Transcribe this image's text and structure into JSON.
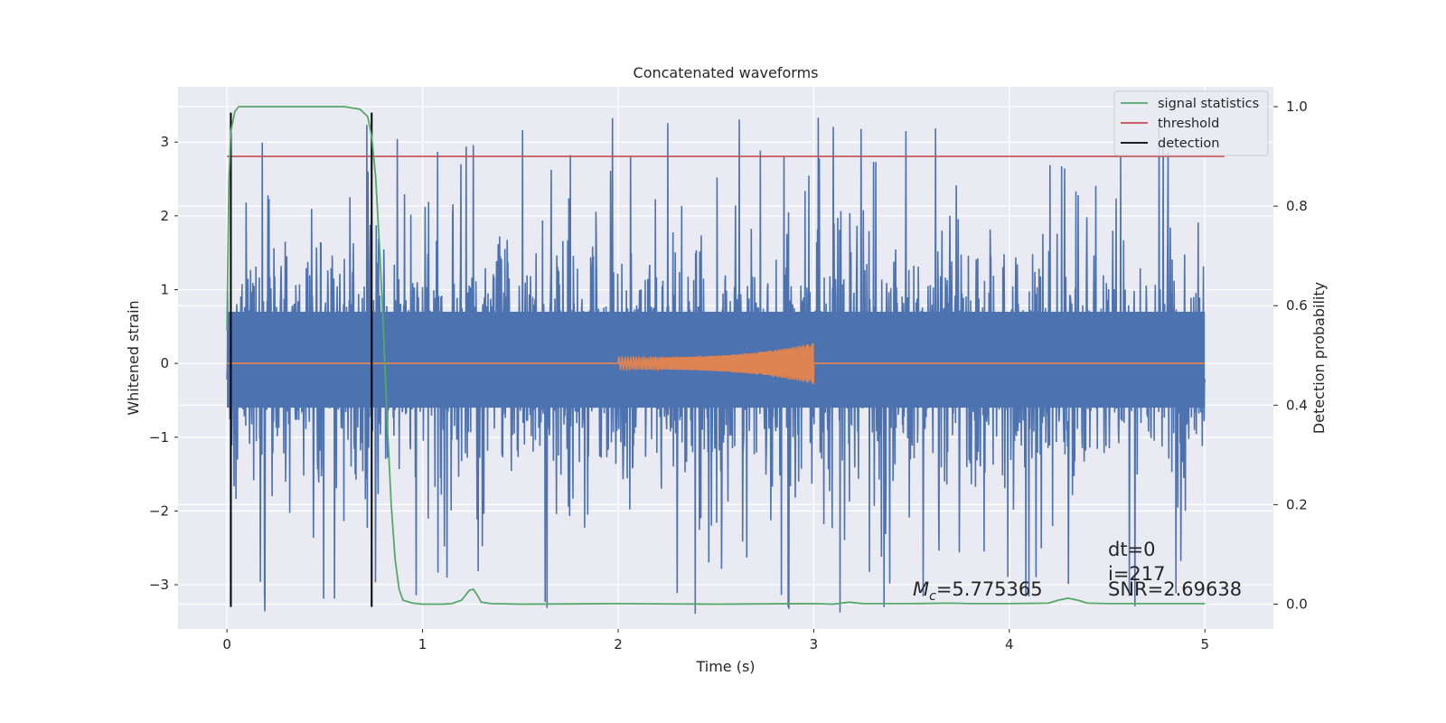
{
  "chart_data": {
    "type": "line",
    "title": "Concatenated waveforms",
    "xlabel": "Time (s)",
    "ylabel": "Whitened strain",
    "ylabel_right": "Detection probability",
    "xlim": [
      -0.25,
      5.35
    ],
    "ylim": [
      -3.6,
      3.75
    ],
    "ylim_right": [
      -0.05,
      1.04
    ],
    "x_ticks": [
      0,
      1,
      2,
      3,
      4,
      5
    ],
    "x_tick_labels": [
      "0",
      "1",
      "2",
      "3",
      "4",
      "5"
    ],
    "y_ticks": [
      -3,
      -2,
      -1,
      0,
      1,
      2,
      3
    ],
    "y_tick_labels": [
      "−3",
      "−2",
      "−1",
      "0",
      "1",
      "2",
      "3"
    ],
    "y2_ticks": [
      0.0,
      0.2,
      0.4,
      0.6,
      0.8,
      1.0
    ],
    "y2_tick_labels": [
      "0.0",
      "0.2",
      "0.4",
      "0.6",
      "0.8",
      "1.0"
    ],
    "grid": true,
    "legend_position": "top-right",
    "colors": {
      "background": "#eaeaf2",
      "strain": "#4c72b0",
      "template": "#dd8452",
      "signal_statistics": "#55a868",
      "threshold": "#c44e52",
      "detection": "#000000"
    },
    "series": [
      {
        "name": "signal statistics",
        "axis": "right",
        "x": [
          0.0,
          0.01,
          0.02,
          0.04,
          0.06,
          0.1,
          0.2,
          0.4,
          0.6,
          0.68,
          0.72,
          0.74,
          0.76,
          0.78,
          0.8,
          0.82,
          0.84,
          0.86,
          0.88,
          0.9,
          0.95,
          1.0,
          1.1,
          1.15,
          1.2,
          1.24,
          1.26,
          1.28,
          1.3,
          1.35,
          1.5,
          2.0,
          2.5,
          3.0,
          3.1,
          3.18,
          3.25,
          3.5,
          3.7,
          3.8,
          4.0,
          4.2,
          4.25,
          4.3,
          4.35,
          4.4,
          4.5,
          5.0
        ],
        "y": [
          0.55,
          0.85,
          0.95,
          0.99,
          1.0,
          1.0,
          1.0,
          1.0,
          1.0,
          0.995,
          0.98,
          0.94,
          0.86,
          0.72,
          0.55,
          0.36,
          0.2,
          0.09,
          0.03,
          0.008,
          0.002,
          0.0,
          0.0,
          0.001,
          0.008,
          0.028,
          0.03,
          0.018,
          0.004,
          0.001,
          0.0,
          0.001,
          0.0,
          0.001,
          0.0,
          0.004,
          0.001,
          0.001,
          0.002,
          0.001,
          0.001,
          0.002,
          0.008,
          0.012,
          0.008,
          0.002,
          0.001,
          0.001
        ]
      },
      {
        "name": "threshold",
        "axis": "right",
        "x": [
          0.0,
          5.1
        ],
        "y": [
          0.9,
          0.9
        ]
      },
      {
        "name": "detection",
        "axis": "left",
        "x": [
          0.02,
          0.74
        ],
        "y_range": [
          -3.3,
          3.4
        ]
      },
      {
        "name": "",
        "axis": "left",
        "description_of_signal": "",
        "x_range": [
          0,
          5
        ],
        "amplitude_core": 0.7,
        "amplitude_peak": 3.4
      },
      {
        "name": "",
        "axis": "left",
        "x_range": [
          0,
          5
        ],
        "chirp_range": [
          2.0,
          3.0
        ],
        "chirp_amplitude": [
          0.08,
          0.28
        ]
      }
    ],
    "annotations": {
      "mc_symbol": "M",
      "mc_subscript": "c",
      "mc_value": "=5.775365",
      "dt": "dt=0",
      "i": "i=217",
      "snr": "SNR=2.69638"
    }
  }
}
